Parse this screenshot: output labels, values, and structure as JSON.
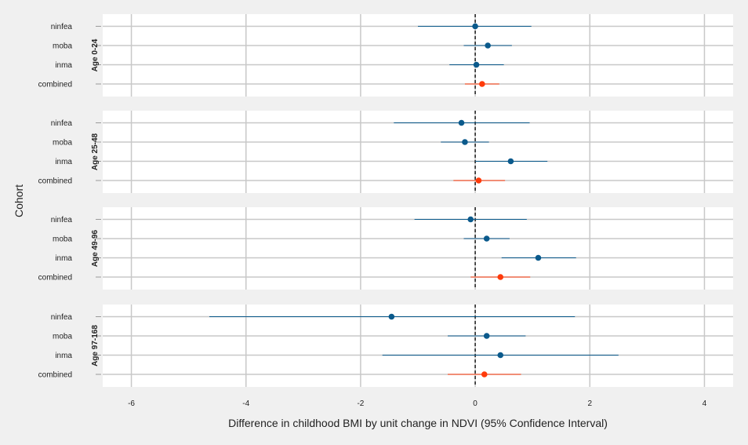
{
  "chart_data": {
    "type": "forest",
    "title": "",
    "xlabel": "Difference in childhood BMI by unit change in NDVI (95% Confidence Interval)",
    "ylabel": "Cohort",
    "xlim": [
      -6.5,
      4.5
    ],
    "xticks": [
      -6,
      -4,
      -2,
      0,
      2,
      4
    ],
    "cohorts": [
      "ninfea",
      "moba",
      "inma",
      "combined"
    ],
    "reference_line": 0,
    "colors": {
      "cohort": "#0b5a8c",
      "combined": "#ff3a0a",
      "grid": "#c8c8c8",
      "reference": "#111111"
    },
    "panels": [
      {
        "label": "Age 0-24",
        "rows": [
          {
            "cohort": "ninfea",
            "estimate": 0.0,
            "lower": -1.0,
            "upper": 0.98
          },
          {
            "cohort": "moba",
            "estimate": 0.22,
            "lower": -0.2,
            "upper": 0.64
          },
          {
            "cohort": "inma",
            "estimate": 0.02,
            "lower": -0.45,
            "upper": 0.5
          },
          {
            "cohort": "combined",
            "estimate": 0.12,
            "lower": -0.18,
            "upper": 0.42
          }
        ]
      },
      {
        "label": "Age 25-48",
        "rows": [
          {
            "cohort": "ninfea",
            "estimate": -0.24,
            "lower": -1.42,
            "upper": 0.95
          },
          {
            "cohort": "moba",
            "estimate": -0.18,
            "lower": -0.6,
            "upper": 0.24
          },
          {
            "cohort": "inma",
            "estimate": 0.62,
            "lower": 0.0,
            "upper": 1.26
          },
          {
            "cohort": "combined",
            "estimate": 0.06,
            "lower": -0.38,
            "upper": 0.52
          }
        ]
      },
      {
        "label": "Age 49-96",
        "rows": [
          {
            "cohort": "ninfea",
            "estimate": -0.08,
            "lower": -1.06,
            "upper": 0.9
          },
          {
            "cohort": "moba",
            "estimate": 0.2,
            "lower": -0.2,
            "upper": 0.6
          },
          {
            "cohort": "inma",
            "estimate": 1.1,
            "lower": 0.46,
            "upper": 1.76
          },
          {
            "cohort": "combined",
            "estimate": 0.44,
            "lower": -0.08,
            "upper": 0.96
          }
        ]
      },
      {
        "label": "Age 97-168",
        "rows": [
          {
            "cohort": "ninfea",
            "estimate": -1.46,
            "lower": -4.64,
            "upper": 1.74
          },
          {
            "cohort": "moba",
            "estimate": 0.2,
            "lower": -0.48,
            "upper": 0.88
          },
          {
            "cohort": "inma",
            "estimate": 0.44,
            "lower": -1.62,
            "upper": 2.5
          },
          {
            "cohort": "combined",
            "estimate": 0.16,
            "lower": -0.48,
            "upper": 0.8
          }
        ]
      }
    ]
  }
}
